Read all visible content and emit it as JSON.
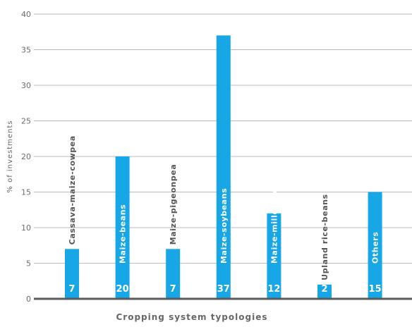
{
  "chart_data": {
    "type": "bar",
    "ylabel": "% of investments",
    "xlabel": "Cropping system typologies",
    "ylim": [
      0,
      40
    ],
    "yticks": [
      0,
      5,
      10,
      15,
      20,
      25,
      30,
      35,
      40
    ],
    "grid": true,
    "categories": [
      "Cassava-maize-cowpea",
      "Maize-beans",
      "Maize-pigeonpea",
      "Maize-soybeans",
      "Maize-millet-sorghum",
      "Upland rice-beans",
      "Others"
    ],
    "values": [
      7,
      20,
      7,
      37,
      12,
      2,
      15
    ],
    "value_labels": [
      "7",
      "20",
      "7",
      "37",
      "12",
      "2",
      "15"
    ],
    "bar_color": "#17a6e6"
  }
}
